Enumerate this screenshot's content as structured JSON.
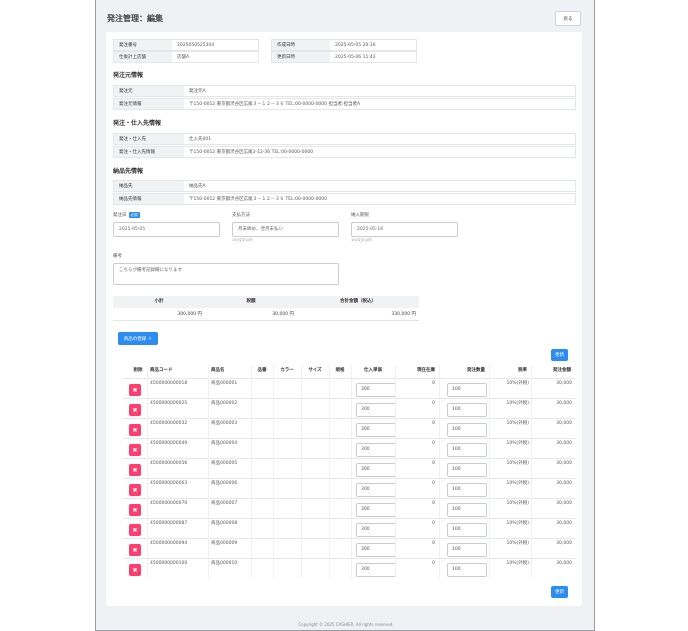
{
  "header": {
    "title": "発注管理：編集",
    "back_label": "戻る"
  },
  "meta": {
    "order_no_label": "発注番号",
    "order_no": "2025050525304",
    "created_label": "作成日時",
    "created": "2025-05-05 20:16",
    "store_label": "仕後計上店舗",
    "store": "店舗A",
    "updated_label": "更新日時",
    "updated": "2025-05-06 11:42"
  },
  "sender": {
    "title": "発注元情報",
    "name_label": "発注元",
    "name": "発注元A",
    "info_label": "発注元情報",
    "info": "〒150-0012 東京都渋谷区広尾３－１２－３６  TEL:00-0000-0000 担当者:担当者A"
  },
  "supplier": {
    "title": "発注・仕入先情報",
    "name_label": "発注・仕入先",
    "name": "仕入先001",
    "info_label": "発注・仕入先情報",
    "info": "〒150-0012 東京都渋谷区広尾3-12-36  TEL:00-0000-0000"
  },
  "delivery": {
    "title": "納品先情報",
    "name_label": "納品先",
    "name": "納品先A",
    "info_label": "納品先情報",
    "info": "〒150-0012 東京都渋谷区広尾３－１２－３６  TEL:00-0000-0000"
  },
  "form": {
    "order_date_label": "発注日",
    "required_badge": "必須",
    "order_date": "2025-05-05",
    "payment_label": "支払方法",
    "payment": "月末締め、翌月末払い",
    "payment_hint": "100文字以内",
    "due_label": "納入期限",
    "due": "2025-05-16",
    "due_hint": "100文字以内",
    "note_label": "備考",
    "note": "こちらが備考記録欄になります"
  },
  "summary": {
    "subtotal_label": "小計",
    "subtotal": "300,000 円",
    "tax_label": "税額",
    "tax": "30,000 円",
    "total_label": "合計金額（税込）",
    "total": "330,000 円"
  },
  "buttons": {
    "add_product": "商品の登録 ＋",
    "update_top": "更新",
    "update_bottom": "更新"
  },
  "table": {
    "headers": [
      "削除",
      "商品コード",
      "商品名",
      "品番",
      "カラー",
      "サイズ",
      "規格",
      "仕入単価",
      "現在在庫",
      "発注数量",
      "税率",
      "発注金額"
    ],
    "rows": [
      {
        "code": "4500000000018",
        "name": "商品000001",
        "price": "300",
        "stock": "0",
        "qty": "100",
        "tax": "10%(外税)",
        "amount": "30,000"
      },
      {
        "code": "4500000000025",
        "name": "商品000002",
        "price": "300",
        "stock": "0",
        "qty": "100",
        "tax": "10%(外税)",
        "amount": "30,000"
      },
      {
        "code": "4500000000032",
        "name": "商品000003",
        "price": "300",
        "stock": "0",
        "qty": "100",
        "tax": "10%(外税)",
        "amount": "30,000"
      },
      {
        "code": "4500000000049",
        "name": "商品000004",
        "price": "300",
        "stock": "0",
        "qty": "100",
        "tax": "10%(外税)",
        "amount": "30,000"
      },
      {
        "code": "4500000000056",
        "name": "商品000005",
        "price": "300",
        "stock": "0",
        "qty": "100",
        "tax": "10%(外税)",
        "amount": "30,000"
      },
      {
        "code": "4500000000063",
        "name": "商品000006",
        "price": "300",
        "stock": "0",
        "qty": "100",
        "tax": "10%(外税)",
        "amount": "30,000"
      },
      {
        "code": "4500000000070",
        "name": "商品000007",
        "price": "300",
        "stock": "0",
        "qty": "100",
        "tax": "10%(外税)",
        "amount": "30,000"
      },
      {
        "code": "4500000000087",
        "name": "商品000008",
        "price": "300",
        "stock": "0",
        "qty": "100",
        "tax": "10%(外税)",
        "amount": "30,000"
      },
      {
        "code": "4500000000094",
        "name": "商品000009",
        "price": "300",
        "stock": "0",
        "qty": "100",
        "tax": "10%(外税)",
        "amount": "30,000"
      },
      {
        "code": "4500000000100",
        "name": "商品000010",
        "price": "300",
        "stock": "0",
        "qty": "100",
        "tax": "10%(外税)",
        "amount": "30,000"
      }
    ]
  },
  "footer": {
    "copyright": "Copyright © 2025 CASHIER. All rights reserved."
  }
}
